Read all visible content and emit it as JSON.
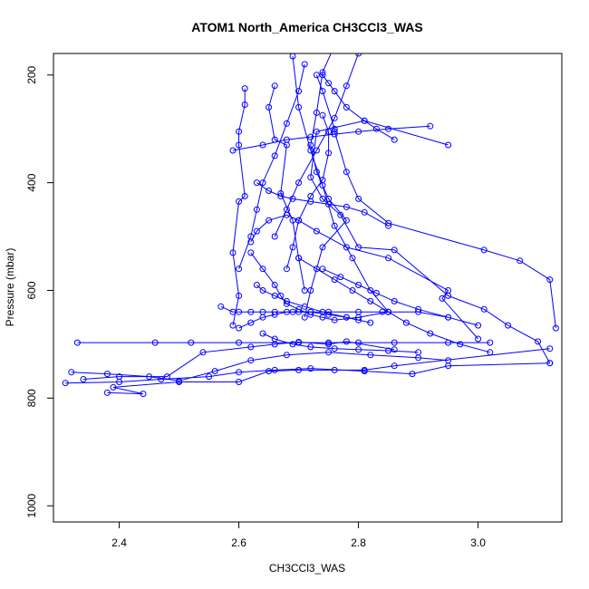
{
  "chart_data": {
    "type": "line",
    "title": "ATOM1 North_America CH3CCl3_WAS",
    "xlabel": "CH3CCl3_WAS",
    "ylabel": "Pressure (mbar)",
    "xlim": [
      2.29,
      3.14
    ],
    "ylim": [
      1030,
      160
    ],
    "y_reversed": true,
    "x_ticks": [
      2.4,
      2.6,
      2.8,
      3.0
    ],
    "x_tick_labels": [
      "2.4",
      "2.6",
      "2.8",
      "3.0"
    ],
    "y_ticks": [
      200,
      400,
      600,
      800,
      1000
    ],
    "y_tick_labels": [
      "200",
      "400",
      "600",
      "800",
      "1000"
    ],
    "grid": false,
    "legend": "none",
    "colors": {
      "series": "#0000ff",
      "axes": "#000000",
      "background": "#ffffff"
    },
    "series": [
      {
        "x": [
          2.76,
          2.74,
          2.73,
          2.72,
          2.73,
          2.75,
          2.78,
          2.74,
          2.72,
          2.71
        ],
        "y": [
          145,
          195,
          270,
          330,
          380,
          430,
          470,
          520,
          600,
          650
        ]
      },
      {
        "x": [
          2.61,
          2.61,
          2.6,
          2.6,
          2.61,
          2.6,
          2.59,
          2.6,
          2.59
        ],
        "y": [
          225,
          255,
          305,
          330,
          425,
          435,
          530,
          610,
          665
        ]
      },
      {
        "x": [
          2.66,
          2.65,
          2.66,
          2.68,
          2.67,
          2.69,
          2.7,
          2.71
        ],
        "y": [
          220,
          260,
          320,
          330,
          420,
          470,
          540,
          600
        ]
      },
      {
        "x": [
          2.73,
          2.74,
          2.76,
          2.76,
          2.78,
          2.8,
          2.85,
          3.01,
          3.07,
          3.12,
          3.13
        ],
        "y": [
          200,
          230,
          300,
          305,
          380,
          430,
          475,
          525,
          545,
          580,
          670
        ]
      },
      {
        "x": [
          2.95,
          2.81,
          2.73,
          2.72,
          2.74,
          2.77,
          2.8,
          2.86,
          2.95,
          3.01,
          3.05,
          3.1,
          3.12
        ],
        "y": [
          330,
          285,
          305,
          390,
          430,
          460,
          520,
          525,
          610,
          635,
          665,
          695,
          735
        ]
      },
      {
        "x": [
          2.62,
          2.63,
          2.65,
          2.68,
          2.7,
          2.73,
          2.78,
          2.85,
          2.95,
          2.94,
          3.0
        ],
        "y": [
          510,
          490,
          470,
          460,
          470,
          490,
          520,
          540,
          600,
          615,
          690
        ]
      },
      {
        "x": [
          2.57,
          2.59,
          2.6,
          2.62,
          2.64,
          2.66,
          2.69,
          2.72,
          2.75,
          2.8,
          2.84,
          2.9,
          2.95
        ],
        "y": [
          630,
          640,
          640,
          640,
          640,
          640,
          640,
          640,
          640,
          640,
          640,
          640,
          650
        ]
      },
      {
        "x": [
          2.33,
          2.46,
          2.52,
          2.6,
          2.7,
          2.75,
          2.8,
          2.86,
          2.95,
          3.02
        ],
        "y": [
          697,
          697,
          697,
          697,
          697,
          697,
          697,
          697,
          697,
          697
        ]
      },
      {
        "x": [
          2.32,
          2.38,
          2.45,
          2.5,
          2.56,
          2.62,
          2.68,
          2.75,
          2.82,
          2.9,
          2.95
        ],
        "y": [
          752,
          755,
          760,
          768,
          750,
          730,
          720,
          715,
          720,
          725,
          730
        ]
      },
      {
        "x": [
          2.31,
          2.4,
          2.47,
          2.55,
          2.6,
          2.66,
          2.72,
          2.81,
          2.89,
          2.95,
          3.12
        ],
        "y": [
          772,
          770,
          765,
          760,
          752,
          748,
          745,
          750,
          755,
          740,
          735
        ]
      },
      {
        "x": [
          2.38,
          2.44,
          2.39,
          2.5,
          2.6,
          2.65,
          2.7,
          2.76,
          2.81,
          2.86,
          3.12
        ],
        "y": [
          790,
          792,
          780,
          770,
          770,
          750,
          748,
          748,
          748,
          740,
          708
        ]
      },
      {
        "x": [
          2.34,
          2.4,
          2.48,
          2.54,
          2.62,
          2.66,
          2.7,
          2.75,
          2.78,
          2.86
        ],
        "y": [
          765,
          760,
          760,
          715,
          705,
          700,
          696,
          700,
          695,
          710
        ]
      },
      {
        "x": [
          2.6,
          2.62,
          2.64,
          2.66,
          2.68,
          2.7,
          2.72,
          2.75,
          2.78,
          2.8
        ],
        "y": [
          670,
          660,
          650,
          645,
          640,
          640,
          640,
          645,
          650,
          655
        ]
      },
      {
        "x": [
          2.62,
          2.64,
          2.66,
          2.67,
          2.68,
          2.7,
          2.72,
          2.74,
          2.76,
          2.8,
          2.85
        ],
        "y": [
          530,
          560,
          590,
          610,
          625,
          635,
          645,
          650,
          655,
          650,
          640
        ]
      },
      {
        "x": [
          2.74,
          2.75,
          2.75,
          2.74,
          2.72,
          2.7,
          2.69,
          2.68
        ],
        "y": [
          275,
          305,
          345,
          395,
          425,
          470,
          520,
          560
        ]
      },
      {
        "x": [
          2.69,
          2.7,
          2.72,
          2.74,
          2.76,
          2.79,
          2.82,
          2.85
        ],
        "y": [
          165,
          260,
          340,
          405,
          480,
          540,
          600,
          640
        ]
      },
      {
        "x": [
          2.71,
          2.7,
          2.68,
          2.66,
          2.64,
          2.63,
          2.62,
          2.6
        ],
        "y": [
          180,
          230,
          290,
          350,
          400,
          450,
          500,
          560
        ]
      },
      {
        "x": [
          2.8,
          2.78,
          2.76,
          2.73,
          2.7,
          2.68,
          2.66
        ],
        "y": [
          160,
          220,
          280,
          340,
          400,
          450,
          500
        ]
      },
      {
        "x": [
          2.59,
          2.64,
          2.68,
          2.72,
          2.76,
          2.8,
          2.85,
          2.92
        ],
        "y": [
          340,
          330,
          320,
          315,
          310,
          305,
          300,
          295
        ]
      },
      {
        "x": [
          2.63,
          2.65,
          2.67,
          2.69,
          2.72,
          2.75,
          2.78,
          2.81,
          2.85
        ],
        "y": [
          400,
          415,
          425,
          430,
          435,
          440,
          445,
          455,
          480
        ]
      },
      {
        "x": [
          2.74,
          2.75,
          2.76,
          2.78,
          2.81,
          2.83,
          2.86
        ],
        "y": [
          200,
          215,
          230,
          260,
          285,
          300,
          320
        ]
      },
      {
        "x": [
          2.63,
          2.64,
          2.66,
          2.68,
          2.71,
          2.74,
          2.78,
          2.82
        ],
        "y": [
          590,
          600,
          610,
          620,
          630,
          640,
          650,
          660
        ]
      },
      {
        "x": [
          2.7,
          2.73,
          2.76,
          2.79,
          2.82,
          2.85,
          2.88,
          2.92,
          2.97,
          3.02
        ],
        "y": [
          540,
          560,
          580,
          600,
          620,
          640,
          660,
          680,
          700,
          715
        ]
      },
      {
        "x": [
          2.64,
          2.66,
          2.69,
          2.72,
          2.76,
          2.8,
          2.85,
          2.9
        ],
        "y": [
          680,
          690,
          700,
          705,
          708,
          710,
          712,
          715
        ]
      },
      {
        "x": [
          2.74,
          2.77,
          2.8,
          2.83,
          2.86,
          2.9,
          2.95,
          3.0
        ],
        "y": [
          560,
          575,
          590,
          605,
          620,
          635,
          650,
          665
        ]
      }
    ]
  }
}
